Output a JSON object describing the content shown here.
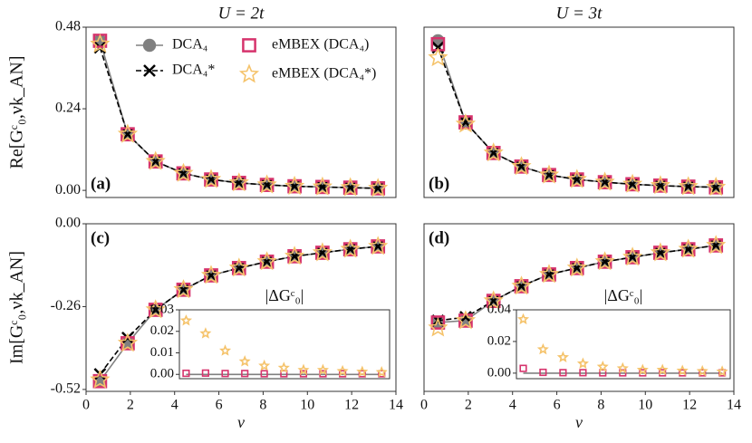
{
  "chart_data": [
    {
      "type": "line",
      "title": "U = 2t",
      "ylabel": "Re[Gᶜ₀,νk_AN]",
      "panel_label": "(a)",
      "legend": "upper right",
      "x": [
        0.63,
        1.88,
        3.14,
        4.4,
        5.65,
        6.91,
        8.17,
        9.42,
        10.68,
        11.94,
        13.19
      ],
      "xlim": [
        0,
        14
      ],
      "ylim": [
        -0.021,
        0.48
      ],
      "yticks": [
        0.48,
        0.24,
        {
          "value": 0,
          "label": "0.00"
        }
      ],
      "series": [
        {
          "name": "DCA₄",
          "color": "#808080",
          "linestyle": "solid",
          "marker": "circle",
          "values": [
            0.44,
            0.165,
            0.085,
            0.05,
            0.032,
            0.022,
            0.016,
            0.012,
            0.01,
            0.008,
            0.006
          ]
        },
        {
          "name": "DCA₄*",
          "color": "#000000",
          "linestyle": "dashed",
          "marker": "x",
          "values": [
            0.42,
            0.165,
            0.085,
            0.05,
            0.032,
            0.022,
            0.016,
            0.012,
            0.01,
            0.008,
            0.006
          ]
        },
        {
          "name": "eMBEX (DCA₄)",
          "color": "#d6336c",
          "linestyle": "none",
          "marker": "square",
          "values": [
            0.44,
            0.165,
            0.085,
            0.05,
            0.032,
            0.022,
            0.016,
            0.012,
            0.01,
            0.008,
            0.006
          ]
        },
        {
          "name": "eMBEX (DCA₄*)",
          "color": "#f5c36b",
          "linestyle": "none",
          "marker": "star",
          "values": [
            0.43,
            0.165,
            0.085,
            0.05,
            0.032,
            0.022,
            0.016,
            0.012,
            0.01,
            0.008,
            0.006
          ]
        }
      ]
    },
    {
      "type": "line",
      "title": "U = 3t",
      "panel_label": "(b)",
      "x": [
        0.63,
        1.88,
        3.14,
        4.4,
        5.65,
        6.91,
        8.17,
        9.42,
        10.68,
        11.94,
        13.19
      ],
      "xlim": [
        0,
        14
      ],
      "ylim": [
        -0.021,
        0.48
      ],
      "series": [
        {
          "name": "DCA₄",
          "color": "#808080",
          "linestyle": "solid",
          "marker": "circle",
          "values": [
            0.44,
            0.2,
            0.11,
            0.07,
            0.045,
            0.032,
            0.024,
            0.018,
            0.014,
            0.011,
            0.009
          ]
        },
        {
          "name": "DCA₄*",
          "color": "#000000",
          "linestyle": "dashed",
          "marker": "x",
          "values": [
            0.42,
            0.2,
            0.11,
            0.07,
            0.045,
            0.032,
            0.024,
            0.018,
            0.014,
            0.011,
            0.009
          ]
        },
        {
          "name": "eMBEX (DCA₄)",
          "color": "#d6336c",
          "linestyle": "none",
          "marker": "square",
          "values": [
            0.43,
            0.2,
            0.11,
            0.07,
            0.045,
            0.032,
            0.024,
            0.018,
            0.014,
            0.011,
            0.009
          ]
        },
        {
          "name": "eMBEX (DCA₄*)",
          "color": "#f5c36b",
          "linestyle": "none",
          "marker": "star",
          "values": [
            0.39,
            0.195,
            0.11,
            0.07,
            0.045,
            0.032,
            0.024,
            0.018,
            0.014,
            0.011,
            0.009
          ]
        }
      ]
    },
    {
      "type": "line",
      "ylabel": "Im[Gᶜ₀,νk_AN]",
      "xlabel": "ν",
      "panel_label": "(c)",
      "x": [
        0.63,
        1.88,
        3.14,
        4.4,
        5.65,
        6.91,
        8.17,
        9.42,
        10.68,
        11.94,
        13.19
      ],
      "xlim": [
        0,
        14
      ],
      "ylim": [
        -0.526,
        0
      ],
      "xticks": [
        0,
        2,
        4,
        6,
        8,
        10,
        12,
        14
      ],
      "yticks": [
        {
          "value": 0,
          "label": "0.00"
        },
        -0.26,
        -0.52
      ],
      "series": [
        {
          "name": "DCA₄",
          "color": "#808080",
          "linestyle": "solid",
          "marker": "circle",
          "values": [
            -0.494,
            -0.375,
            -0.27,
            -0.207,
            -0.162,
            -0.139,
            -0.119,
            -0.102,
            -0.091,
            -0.08,
            -0.071
          ]
        },
        {
          "name": "DCA₄*",
          "color": "#000000",
          "linestyle": "dashed",
          "marker": "x",
          "values": [
            -0.472,
            -0.358,
            -0.27,
            -0.207,
            -0.162,
            -0.139,
            -0.119,
            -0.102,
            -0.091,
            -0.08,
            -0.071
          ]
        },
        {
          "name": "eMBEX (DCA₄)",
          "color": "#d6336c",
          "linestyle": "none",
          "marker": "square",
          "values": [
            -0.494,
            -0.375,
            -0.27,
            -0.207,
            -0.162,
            -0.139,
            -0.119,
            -0.102,
            -0.091,
            -0.08,
            -0.071
          ]
        },
        {
          "name": "eMBEX (DCA₄*)",
          "color": "#f5c36b",
          "linestyle": "none",
          "marker": "star",
          "values": [
            -0.49,
            -0.375,
            -0.27,
            -0.207,
            -0.162,
            -0.139,
            -0.119,
            -0.102,
            -0.091,
            -0.08,
            -0.071
          ]
        }
      ]
    },
    {
      "type": "line",
      "xlabel": "ν",
      "panel_label": "(d)",
      "x": [
        0.63,
        1.88,
        3.14,
        4.4,
        5.65,
        6.91,
        8.17,
        9.42,
        10.68,
        11.94,
        13.19
      ],
      "xlim": [
        0,
        14
      ],
      "ylim": [
        -0.526,
        0
      ],
      "xticks": [
        0,
        2,
        4,
        6,
        8,
        10,
        12,
        14
      ],
      "series": [
        {
          "name": "DCA₄",
          "color": "#808080",
          "linestyle": "solid",
          "marker": "circle",
          "values": [
            -0.31,
            -0.304,
            -0.242,
            -0.196,
            -0.159,
            -0.139,
            -0.119,
            -0.105,
            -0.091,
            -0.08,
            -0.068
          ]
        },
        {
          "name": "DCA₄*",
          "color": "#000000",
          "linestyle": "dashed",
          "marker": "x",
          "values": [
            -0.304,
            -0.293,
            -0.242,
            -0.196,
            -0.159,
            -0.139,
            -0.119,
            -0.105,
            -0.091,
            -0.08,
            -0.068
          ]
        },
        {
          "name": "eMBEX (DCA₄)",
          "color": "#d6336c",
          "linestyle": "none",
          "marker": "square",
          "values": [
            -0.31,
            -0.304,
            -0.242,
            -0.196,
            -0.159,
            -0.139,
            -0.119,
            -0.105,
            -0.091,
            -0.08,
            -0.068
          ]
        },
        {
          "name": "eMBEX (DCA₄*)",
          "color": "#f5c36b",
          "linestyle": "none",
          "marker": "star",
          "values": [
            -0.327,
            -0.304,
            -0.242,
            -0.196,
            -0.159,
            -0.139,
            -0.119,
            -0.105,
            -0.091,
            -0.08,
            -0.068
          ]
        }
      ]
    },
    {
      "type": "line",
      "title": "|ΔGᶜ₀|",
      "x": [
        0.63,
        1.88,
        3.14,
        4.4,
        5.65,
        6.91,
        8.17,
        9.42,
        10.68,
        11.94,
        13.19
      ],
      "xlim": [
        0.2,
        13.7
      ],
      "ylim": [
        -0.002,
        0.03
      ],
      "yticks": [
        0.03,
        0.02,
        0.01,
        {
          "value": 0,
          "label": "0.00"
        }
      ],
      "series": [
        {
          "name": "DCA₄",
          "color": "#808080",
          "linestyle": "solid",
          "marker": "none",
          "values": [
            0,
            0,
            0,
            0,
            0,
            0,
            0,
            0,
            0,
            0,
            0
          ]
        },
        {
          "name": "eMBEX (DCA₄)",
          "color": "#d6336c",
          "linestyle": "none",
          "marker": "square",
          "values": [
            0.0005,
            0.0006,
            0.0004,
            0.0004,
            0.0003,
            0.0003,
            0.0003,
            0.0003,
            0.0003,
            0.0003,
            0.0003
          ]
        },
        {
          "name": "eMBEX (DCA₄*)",
          "color": "#f5c36b",
          "linestyle": "none",
          "marker": "star",
          "values": [
            0.025,
            0.019,
            0.011,
            0.006,
            0.004,
            0.003,
            0.002,
            0.002,
            0.0015,
            0.0012,
            0.001
          ]
        }
      ]
    },
    {
      "type": "line",
      "title": "|ΔGᶜ₀|",
      "x": [
        0.63,
        1.88,
        3.14,
        4.4,
        5.65,
        6.91,
        8.17,
        9.42,
        10.68,
        11.94,
        13.19
      ],
      "xlim": [
        0.2,
        13.7
      ],
      "ylim": [
        -0.0035,
        0.04
      ],
      "yticks": [
        0.04,
        0.02,
        {
          "value": 0,
          "label": "0.00"
        }
      ],
      "series": [
        {
          "name": "DCA₄",
          "color": "#808080",
          "linestyle": "solid",
          "marker": "none",
          "values": [
            0,
            0,
            0,
            0,
            0,
            0,
            0,
            0,
            0,
            0,
            0
          ]
        },
        {
          "name": "eMBEX (DCA₄)",
          "color": "#d6336c",
          "linestyle": "none",
          "marker": "square",
          "values": [
            0.003,
            0.0005,
            0.0003,
            0.0003,
            0.0002,
            0.0002,
            0.0002,
            0.0002,
            0.0002,
            0.0002,
            0.0002
          ]
        },
        {
          "name": "eMBEX (DCA₄*)",
          "color": "#f5c36b",
          "linestyle": "none",
          "marker": "star",
          "values": [
            0.034,
            0.015,
            0.01,
            0.006,
            0.004,
            0.003,
            0.002,
            0.002,
            0.0015,
            0.0012,
            0.001
          ]
        }
      ]
    }
  ]
}
